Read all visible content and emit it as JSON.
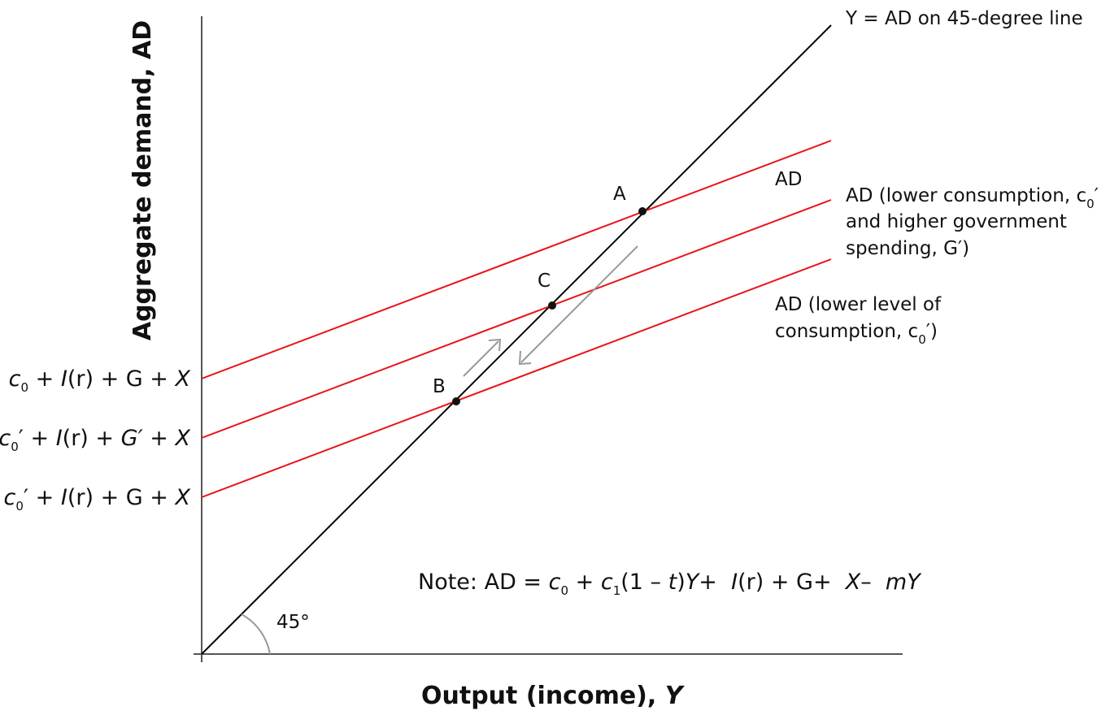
{
  "title": "",
  "axes": {
    "x_label_main": "Output (income),",
    "x_label_var": "Y",
    "y_label": "Aggregate demand, AD"
  },
  "lines": {
    "guide_45": "Y = AD on 45-degree line",
    "ad_top": "AD",
    "ad_mid_line1": "AD (lower consumption, c",
    "ad_mid_sub": "0",
    "ad_mid_prime": "′",
    "ad_mid_line2": "and higher government",
    "ad_mid_line3": "spending, G′)",
    "ad_low_line1": "AD (lower level of",
    "ad_low_line2a": "consumption, c",
    "ad_low_sub": "0",
    "ad_low_line2b": "′)"
  },
  "intercepts": {
    "top": {
      "c": "c",
      "sub": "0",
      "rest_a": " + ",
      "I": "I",
      "r": "(r)",
      "rest_b": " + G + ",
      "X": "X"
    },
    "mid": {
      "c": "c",
      "sub": "0",
      "prime": "′",
      "rest_a": " + ",
      "I": "I",
      "r": "(r)",
      "rest_b": " + ",
      "G": "G′",
      "rest_c": " + ",
      "X": "X"
    },
    "low": {
      "c": "c",
      "sub": "0",
      "prime": "′",
      "rest_a": " + ",
      "I": "I",
      "r": "(r)",
      "rest_b": " + G + ",
      "X": "X"
    }
  },
  "points": [
    {
      "label": "A"
    },
    {
      "label": "B"
    },
    {
      "label": "C"
    }
  ],
  "angle_label": "45°",
  "note": {
    "prefix": "Note: AD = ",
    "c": "c",
    "sub0": "0",
    "plus": " + ",
    "c1": "c",
    "sub1": "1",
    "open": "(1 – ",
    "t": "t",
    "close": ")",
    "Y": "Y",
    "plus2": "+  ",
    "I": "I",
    "r": "(r)",
    "plus3": " + G+  ",
    "X": "X",
    "minus": "–  ",
    "mY": "mY"
  },
  "colors": {
    "axis": "#555555",
    "guide": "#000000",
    "ad": "#e8141b",
    "arrow": "#999999",
    "text": "#111111"
  }
}
